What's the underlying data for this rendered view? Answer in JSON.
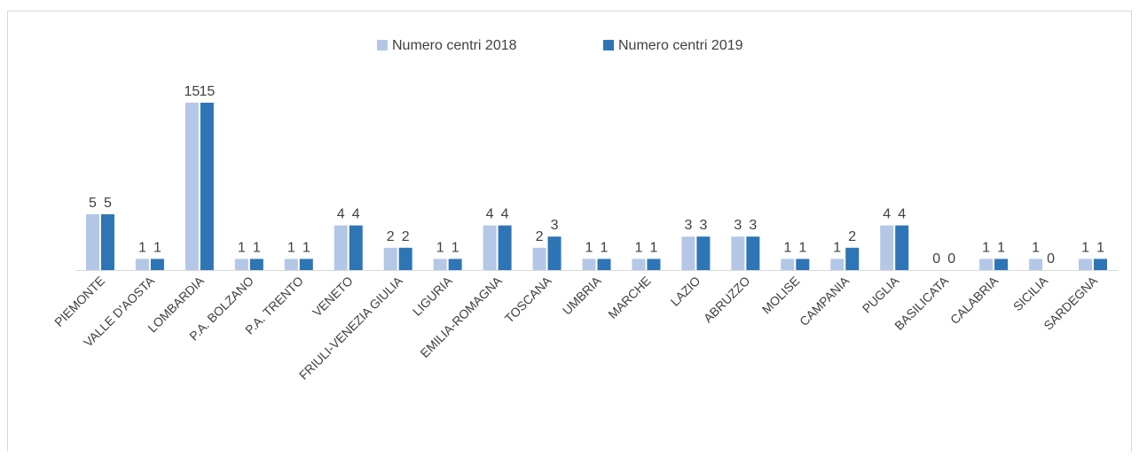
{
  "chart_data": {
    "type": "bar",
    "categories": [
      "PIEMONTE",
      "VALLE D'AOSTA",
      "LOMBARDIA",
      "P.A. BOLZANO",
      "P.A. TRENTO",
      "VENETO",
      "FRIULI-VENEZIA GIULIA",
      "LIGURIA",
      "EMILIA-ROMAGNA",
      "TOSCANA",
      "UMBRIA",
      "MARCHE",
      "LAZIO",
      "ABRUZZO",
      "MOLISE",
      "CAMPANIA",
      "PUGLIA",
      "BASILICATA",
      "CALABRIA",
      "SICILIA",
      "SARDEGNA"
    ],
    "series": [
      {
        "name": "Numero centri 2018",
        "color": "#b4c7e7",
        "values": [
          5,
          1,
          15,
          1,
          1,
          4,
          2,
          1,
          4,
          2,
          1,
          1,
          3,
          3,
          1,
          1,
          4,
          0,
          1,
          1,
          1
        ]
      },
      {
        "name": "Numero centri 2019",
        "color": "#2e75b6",
        "values": [
          5,
          1,
          15,
          1,
          1,
          4,
          2,
          1,
          4,
          3,
          1,
          1,
          3,
          3,
          1,
          2,
          4,
          0,
          1,
          0,
          1
        ]
      }
    ],
    "legend": "top"
  }
}
